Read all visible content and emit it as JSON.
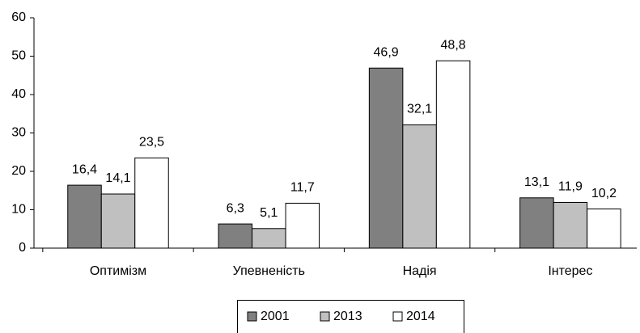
{
  "chart_data": {
    "type": "bar",
    "categories": [
      "Оптимізм",
      "Упевненість",
      "Надія",
      "Інтерес"
    ],
    "series": [
      {
        "name": "2001",
        "color": "#808080",
        "values": [
          16.4,
          6.3,
          46.9,
          13.1
        ],
        "value_labels": [
          "16,4",
          "6,3",
          "46,9",
          "13,1"
        ]
      },
      {
        "name": "2013",
        "color": "#c0c0c0",
        "values": [
          14.1,
          5.1,
          32.1,
          11.9
        ],
        "value_labels": [
          "14,1",
          "5,1",
          "32,1",
          "11,9"
        ]
      },
      {
        "name": "2014",
        "color": "#ffffff",
        "values": [
          23.5,
          11.7,
          48.8,
          10.2
        ],
        "value_labels": [
          "23,5",
          "11,7",
          "48,8",
          "10,2"
        ]
      }
    ],
    "ylim": [
      0,
      60
    ],
    "yticks": [
      0,
      10,
      20,
      30,
      40,
      50,
      60
    ],
    "legend": "bottom"
  }
}
